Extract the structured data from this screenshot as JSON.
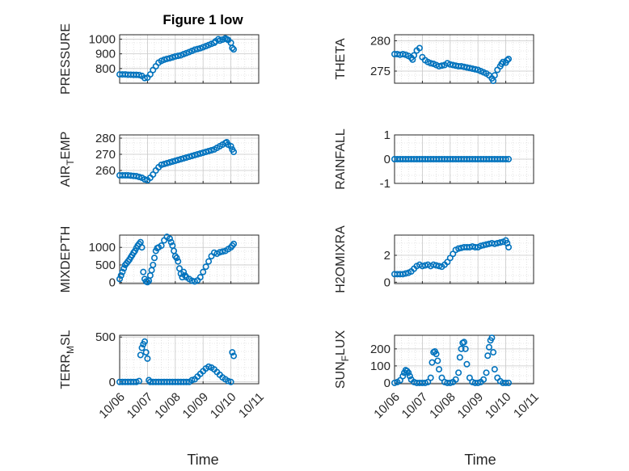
{
  "figure": {
    "title": "Figure 1 low",
    "xlabel": "Time"
  },
  "colors": {
    "marker": "#0072BD",
    "axis": "#262626",
    "grid": "#d0d0d0"
  },
  "x_ticks": [
    "10/06",
    "10/07",
    "10/08",
    "10/09",
    "10/10",
    "10/11"
  ],
  "chart_data": [
    {
      "type": "scatter",
      "ylabel": "PRESSURE",
      "xlim": [
        0,
        5
      ],
      "ylim": [
        700,
        1030
      ],
      "yticks": [
        800,
        900,
        1000
      ],
      "ytick_labels": [
        "800",
        "900",
        "1000"
      ],
      "x": [
        0,
        0.1,
        0.2,
        0.3,
        0.4,
        0.5,
        0.6,
        0.7,
        0.8,
        0.9,
        1.0,
        1.1,
        1.2,
        1.3,
        1.4,
        1.5,
        1.6,
        1.7,
        1.8,
        1.9,
        2.0,
        2.1,
        2.2,
        2.3,
        2.4,
        2.5,
        2.6,
        2.7,
        2.8,
        2.9,
        3.0,
        3.1,
        3.2,
        3.3,
        3.4,
        3.45,
        3.55,
        3.6,
        3.7,
        3.8,
        3.85,
        3.9,
        4.0,
        4.05,
        4.1
      ],
      "y": [
        760,
        760,
        760,
        758,
        758,
        757,
        757,
        756,
        750,
        735,
        738,
        760,
        790,
        815,
        840,
        852,
        860,
        866,
        870,
        876,
        882,
        886,
        890,
        898,
        905,
        912,
        920,
        928,
        933,
        938,
        945,
        952,
        960,
        968,
        975,
        985,
        1000,
        990,
        997,
        1005,
        1000,
        995,
        975,
        940,
        930
      ]
    },
    {
      "type": "scatter",
      "ylabel": "THETA",
      "xlim": [
        0,
        5
      ],
      "ylim": [
        273,
        281
      ],
      "yticks": [
        275,
        280
      ],
      "ytick_labels": [
        "275",
        "280"
      ],
      "x": [
        0,
        0.1,
        0.2,
        0.3,
        0.4,
        0.5,
        0.6,
        0.65,
        0.7,
        0.8,
        0.9,
        1.0,
        1.1,
        1.2,
        1.3,
        1.4,
        1.5,
        1.6,
        1.7,
        1.8,
        1.9,
        2.0,
        2.1,
        2.2,
        2.3,
        2.4,
        2.5,
        2.6,
        2.7,
        2.8,
        2.9,
        3.0,
        3.1,
        3.2,
        3.3,
        3.4,
        3.5,
        3.55,
        3.6,
        3.7,
        3.8,
        3.85,
        3.9,
        4.0,
        4.05,
        4.1
      ],
      "y": [
        277.8,
        277.8,
        277.7,
        277.8,
        277.7,
        277.5,
        277.2,
        276.9,
        277.6,
        278.4,
        278.8,
        277.3,
        276.8,
        276.5,
        276.3,
        276.2,
        276.0,
        275.8,
        275.9,
        276.0,
        276.3,
        276.1,
        276.0,
        275.9,
        275.8,
        275.8,
        275.7,
        275.6,
        275.5,
        275.4,
        275.3,
        275.2,
        275.0,
        274.8,
        274.6,
        274.3,
        273.8,
        273.4,
        274.3,
        275.2,
        275.8,
        276.2,
        276.5,
        276.4,
        276.8,
        277.0
      ]
    },
    {
      "type": "scatter",
      "ylabel": "AIR_TEMP",
      "ylabel_main": "AIR",
      "ylabel_sub": "T",
      "ylabel_rest": "EMP",
      "xlim": [
        0,
        5
      ],
      "ylim": [
        252,
        282
      ],
      "yticks": [
        260,
        270,
        280
      ],
      "ytick_labels": [
        "260",
        "270",
        "280"
      ],
      "x": [
        0,
        0.1,
        0.2,
        0.3,
        0.4,
        0.5,
        0.6,
        0.7,
        0.8,
        0.9,
        1.0,
        1.1,
        1.2,
        1.3,
        1.4,
        1.5,
        1.6,
        1.7,
        1.8,
        1.9,
        2.0,
        2.1,
        2.2,
        2.3,
        2.4,
        2.5,
        2.6,
        2.7,
        2.8,
        2.9,
        3.0,
        3.1,
        3.2,
        3.3,
        3.4,
        3.5,
        3.6,
        3.7,
        3.8,
        3.85,
        3.9,
        4.0,
        4.05,
        4.1
      ],
      "y": [
        257,
        257,
        257,
        257,
        256.8,
        256.6,
        256.5,
        256,
        255.5,
        254.5,
        254,
        255.5,
        257.5,
        260,
        262,
        263.5,
        264,
        264.5,
        265,
        265.5,
        266,
        266.5,
        267,
        267.5,
        268,
        268.5,
        269,
        269.5,
        270,
        270.5,
        271,
        271.5,
        272,
        272.5,
        273,
        274,
        275,
        276,
        277,
        277.5,
        276,
        275,
        273,
        271.5
      ]
    },
    {
      "type": "scatter",
      "ylabel": "RAINFALL",
      "xlim": [
        0,
        5
      ],
      "ylim": [
        -1,
        1
      ],
      "yticks": [
        -1,
        0,
        1
      ],
      "ytick_labels": [
        "-1",
        "0",
        "1"
      ],
      "x": [
        0,
        0.1,
        0.2,
        0.3,
        0.4,
        0.5,
        0.6,
        0.7,
        0.8,
        0.9,
        1.0,
        1.1,
        1.2,
        1.3,
        1.4,
        1.5,
        1.6,
        1.7,
        1.8,
        1.9,
        2.0,
        2.1,
        2.2,
        2.3,
        2.4,
        2.5,
        2.6,
        2.7,
        2.8,
        2.9,
        3.0,
        3.1,
        3.2,
        3.3,
        3.4,
        3.5,
        3.6,
        3.7,
        3.8,
        3.9,
        4.0,
        4.1
      ],
      "y": [
        0,
        0,
        0,
        0,
        0,
        0,
        0,
        0,
        0,
        0,
        0,
        0,
        0,
        0,
        0,
        0,
        0,
        0,
        0,
        0,
        0,
        0,
        0,
        0,
        0,
        0,
        0,
        0,
        0,
        0,
        0,
        0,
        0,
        0,
        0,
        0,
        0,
        0,
        0,
        0,
        0,
        0
      ]
    },
    {
      "type": "scatter",
      "ylabel": "MIXDEPTH",
      "xlim": [
        0,
        5
      ],
      "ylim": [
        -30,
        1350
      ],
      "yticks": [
        0,
        500,
        1000
      ],
      "ytick_labels": [
        "0",
        "500",
        "1000"
      ],
      "x": [
        0,
        0.05,
        0.1,
        0.15,
        0.2,
        0.25,
        0.3,
        0.35,
        0.4,
        0.45,
        0.5,
        0.55,
        0.6,
        0.65,
        0.7,
        0.75,
        0.8,
        0.85,
        0.9,
        0.95,
        1.0,
        1.05,
        1.1,
        1.15,
        1.2,
        1.25,
        1.3,
        1.35,
        1.4,
        1.5,
        1.6,
        1.7,
        1.8,
        1.85,
        1.9,
        1.95,
        2.0,
        2.05,
        2.1,
        2.15,
        2.2,
        2.25,
        2.3,
        2.35,
        2.4,
        2.5,
        2.6,
        2.7,
        2.8,
        2.9,
        3.0,
        3.1,
        3.2,
        3.3,
        3.4,
        3.5,
        3.6,
        3.7,
        3.8,
        3.9,
        4.0,
        4.05,
        4.1
      ],
      "y": [
        100,
        200,
        300,
        400,
        500,
        550,
        600,
        650,
        720,
        780,
        850,
        900,
        980,
        1050,
        1100,
        1150,
        1000,
        300,
        100,
        30,
        10,
        50,
        200,
        350,
        500,
        700,
        900,
        980,
        1000,
        1050,
        1200,
        1300,
        1250,
        1150,
        1050,
        900,
        750,
        700,
        600,
        400,
        250,
        150,
        300,
        200,
        150,
        100,
        50,
        30,
        60,
        150,
        300,
        450,
        600,
        750,
        850,
        820,
        860,
        880,
        900,
        950,
        1000,
        1050,
        1100
      ]
    },
    {
      "type": "scatter",
      "ylabel": "H2OMIXRA",
      "xlim": [
        0,
        5
      ],
      "ylim": [
        -0.1,
        3.5
      ],
      "yticks": [
        0,
        2
      ],
      "ytick_labels": [
        "0",
        "2"
      ],
      "x": [
        0,
        0.1,
        0.2,
        0.3,
        0.4,
        0.5,
        0.6,
        0.7,
        0.8,
        0.9,
        1.0,
        1.1,
        1.2,
        1.3,
        1.4,
        1.5,
        1.6,
        1.7,
        1.8,
        1.9,
        2.0,
        2.1,
        2.2,
        2.3,
        2.4,
        2.5,
        2.6,
        2.7,
        2.8,
        2.9,
        3.0,
        3.1,
        3.2,
        3.3,
        3.4,
        3.5,
        3.6,
        3.7,
        3.8,
        3.9,
        4.0,
        4.05,
        4.1
      ],
      "y": [
        0.6,
        0.6,
        0.6,
        0.6,
        0.65,
        0.7,
        0.8,
        1.0,
        1.2,
        1.3,
        1.2,
        1.25,
        1.3,
        1.2,
        1.3,
        1.25,
        1.2,
        1.15,
        1.3,
        1.5,
        1.8,
        2.1,
        2.4,
        2.5,
        2.55,
        2.6,
        2.6,
        2.6,
        2.65,
        2.6,
        2.6,
        2.7,
        2.75,
        2.8,
        2.85,
        2.9,
        2.85,
        2.9,
        2.95,
        3.0,
        3.1,
        2.9,
        2.6
      ]
    },
    {
      "type": "scatter",
      "ylabel": "TERR_MSL",
      "ylabel_main": "TERR",
      "ylabel_sub": "M",
      "ylabel_rest": "SL",
      "xlim": [
        0,
        5
      ],
      "ylim": [
        -20,
        520
      ],
      "yticks": [
        0,
        500
      ],
      "ytick_labels": [
        "0",
        "500"
      ],
      "x": [
        0,
        0.1,
        0.2,
        0.3,
        0.4,
        0.5,
        0.6,
        0.7,
        0.75,
        0.8,
        0.85,
        0.9,
        0.95,
        1.0,
        1.05,
        1.1,
        1.2,
        1.3,
        1.4,
        1.5,
        1.6,
        1.7,
        1.8,
        1.9,
        2.0,
        2.1,
        2.2,
        2.3,
        2.4,
        2.5,
        2.6,
        2.7,
        2.8,
        2.9,
        3.0,
        3.1,
        3.2,
        3.3,
        3.4,
        3.5,
        3.6,
        3.7,
        3.8,
        3.9,
        4.0,
        4.05,
        4.1
      ],
      "y": [
        0,
        0,
        0,
        0,
        0,
        0,
        0,
        10,
        300,
        380,
        420,
        450,
        330,
        260,
        20,
        0,
        0,
        0,
        0,
        0,
        0,
        0,
        0,
        0,
        0,
        0,
        0,
        0,
        0,
        0,
        20,
        30,
        60,
        90,
        120,
        150,
        170,
        160,
        140,
        110,
        80,
        50,
        30,
        10,
        0,
        330,
        290
      ]
    },
    {
      "type": "scatter",
      "ylabel": "SUN_FLUX",
      "ylabel_main": "SUN",
      "ylabel_sub": "F",
      "ylabel_rest": "LUX",
      "xlim": [
        0,
        5
      ],
      "ylim": [
        -5,
        280
      ],
      "yticks": [
        0,
        100,
        200
      ],
      "ytick_labels": [
        "0",
        "100",
        "200"
      ],
      "x": [
        0,
        0.1,
        0.2,
        0.3,
        0.35,
        0.4,
        0.45,
        0.5,
        0.55,
        0.6,
        0.7,
        0.8,
        0.9,
        1.0,
        1.1,
        1.2,
        1.3,
        1.35,
        1.4,
        1.45,
        1.5,
        1.55,
        1.6,
        1.7,
        1.8,
        1.9,
        2.0,
        2.1,
        2.2,
        2.3,
        2.35,
        2.4,
        2.45,
        2.5,
        2.55,
        2.6,
        2.7,
        2.8,
        2.9,
        3.0,
        3.1,
        3.2,
        3.3,
        3.35,
        3.4,
        3.45,
        3.5,
        3.55,
        3.6,
        3.7,
        3.8,
        3.9,
        4.0,
        4.1
      ],
      "y": [
        0,
        5,
        15,
        40,
        60,
        75,
        70,
        60,
        40,
        20,
        5,
        0,
        0,
        0,
        0,
        5,
        30,
        120,
        180,
        185,
        170,
        130,
        80,
        30,
        5,
        0,
        0,
        5,
        20,
        60,
        150,
        200,
        235,
        240,
        200,
        110,
        30,
        5,
        0,
        0,
        5,
        20,
        60,
        160,
        210,
        250,
        265,
        180,
        80,
        30,
        10,
        0,
        0,
        0
      ]
    }
  ]
}
